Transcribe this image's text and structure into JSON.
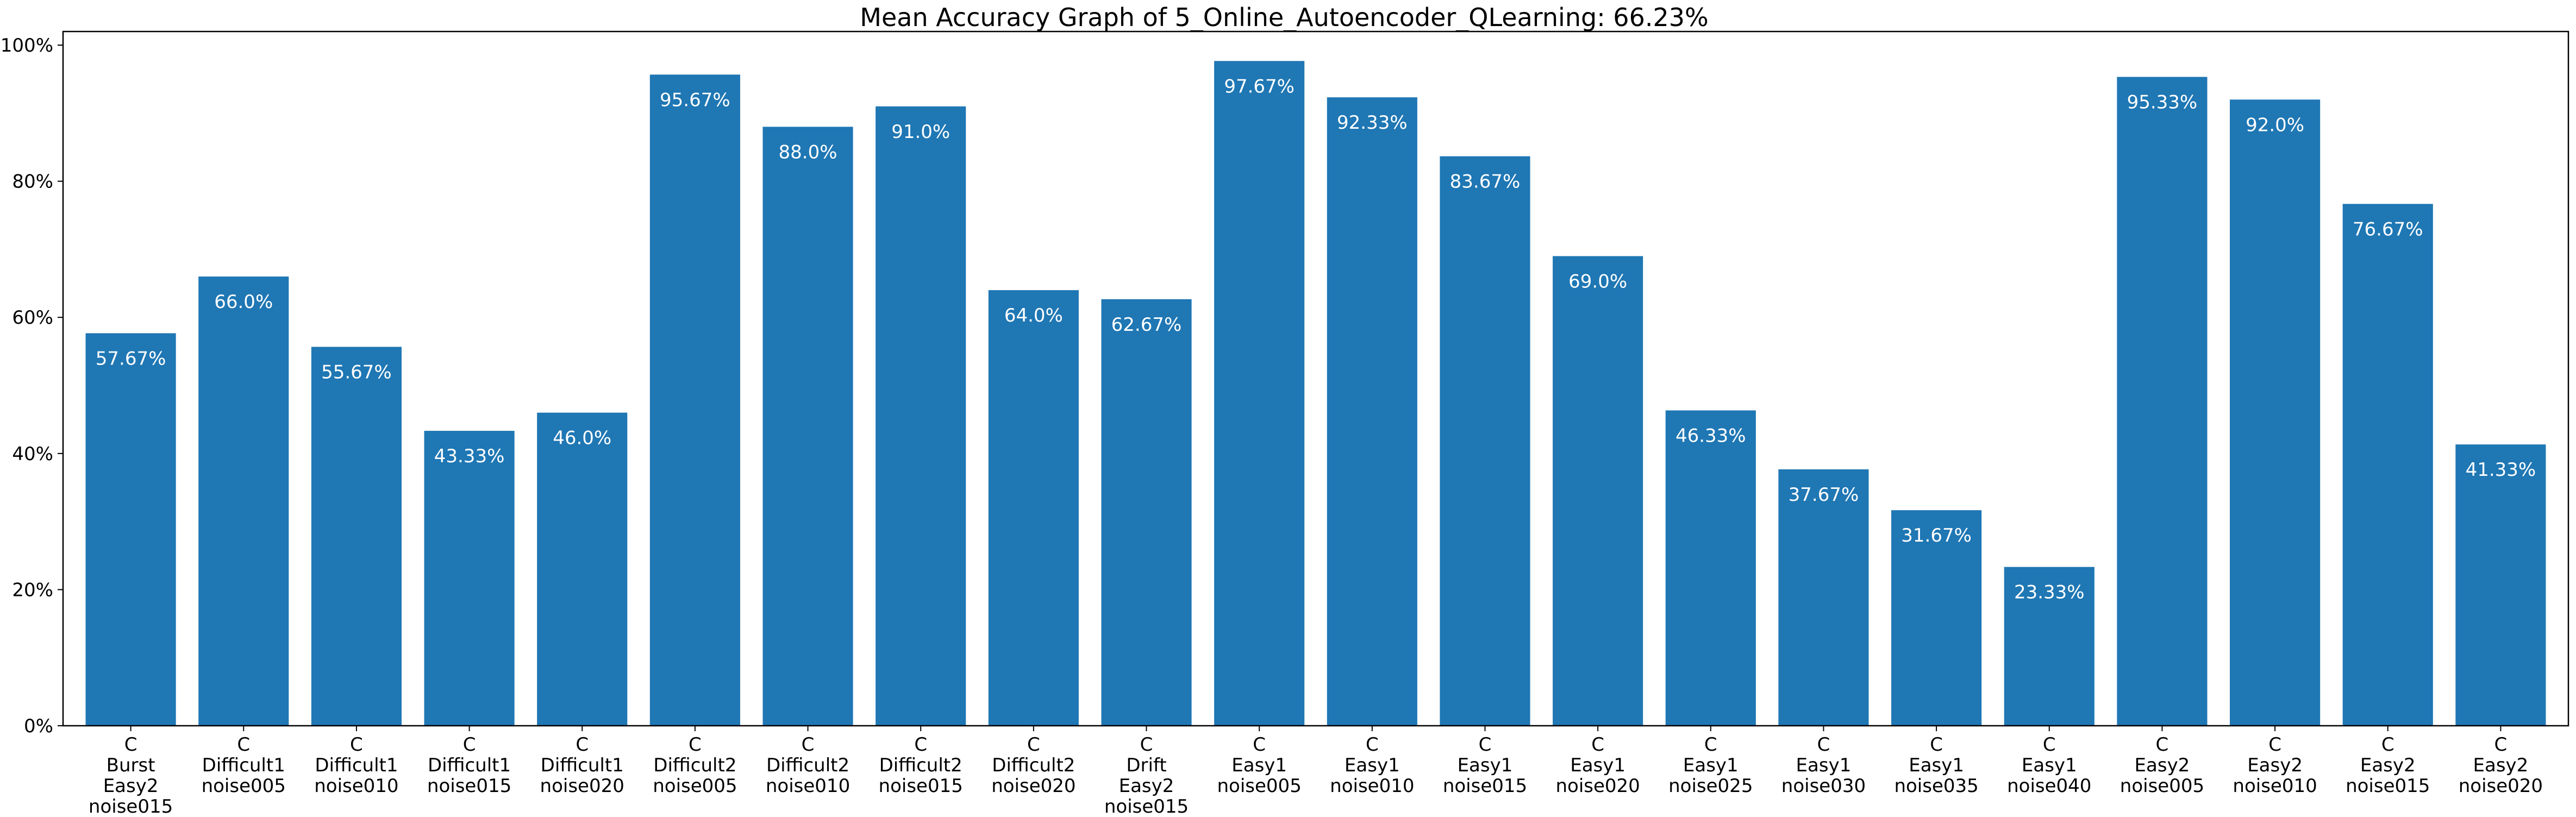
{
  "chart_data": {
    "type": "bar",
    "title": "Mean Accuracy Graph of 5_Online_Autoencoder_QLearning: 66.23%",
    "xlabel": "",
    "ylabel": "",
    "ylim": [
      0,
      102
    ],
    "yticks": [
      0,
      20,
      40,
      60,
      80,
      100
    ],
    "ytick_labels": [
      "0%",
      "20%",
      "40%",
      "60%",
      "80%",
      "100%"
    ],
    "bar_color": "#1f77b4",
    "label_color": "#ffffff",
    "grid": false,
    "categories": [
      [
        "C",
        "Burst",
        "Easy2",
        "noise015"
      ],
      [
        "C",
        "Difficult1",
        "noise005"
      ],
      [
        "C",
        "Difficult1",
        "noise010"
      ],
      [
        "C",
        "Difficult1",
        "noise015"
      ],
      [
        "C",
        "Difficult1",
        "noise020"
      ],
      [
        "C",
        "Difficult2",
        "noise005"
      ],
      [
        "C",
        "Difficult2",
        "noise010"
      ],
      [
        "C",
        "Difficult2",
        "noise015"
      ],
      [
        "C",
        "Difficult2",
        "noise020"
      ],
      [
        "C",
        "Drift",
        "Easy2",
        "noise015"
      ],
      [
        "C",
        "Easy1",
        "noise005"
      ],
      [
        "C",
        "Easy1",
        "noise010"
      ],
      [
        "C",
        "Easy1",
        "noise015"
      ],
      [
        "C",
        "Easy1",
        "noise020"
      ],
      [
        "C",
        "Easy1",
        "noise025"
      ],
      [
        "C",
        "Easy1",
        "noise030"
      ],
      [
        "C",
        "Easy1",
        "noise035"
      ],
      [
        "C",
        "Easy1",
        "noise040"
      ],
      [
        "C",
        "Easy2",
        "noise005"
      ],
      [
        "C",
        "Easy2",
        "noise010"
      ],
      [
        "C",
        "Easy2",
        "noise015"
      ],
      [
        "C",
        "Easy2",
        "noise020"
      ]
    ],
    "values": [
      57.67,
      66.0,
      55.67,
      43.33,
      46.0,
      95.67,
      88.0,
      91.0,
      64.0,
      62.67,
      97.67,
      92.33,
      83.67,
      69.0,
      46.33,
      37.67,
      31.67,
      23.33,
      95.33,
      92.0,
      76.67,
      41.33
    ],
    "value_labels": [
      "57.67%",
      "66.0%",
      "55.67%",
      "43.33%",
      "46.0%",
      "95.67%",
      "88.0%",
      "91.0%",
      "64.0%",
      "62.67%",
      "97.67%",
      "92.33%",
      "83.67%",
      "69.0%",
      "46.33%",
      "37.67%",
      "31.67%",
      "23.33%",
      "95.33%",
      "92.0%",
      "76.67%",
      "41.33%"
    ]
  }
}
